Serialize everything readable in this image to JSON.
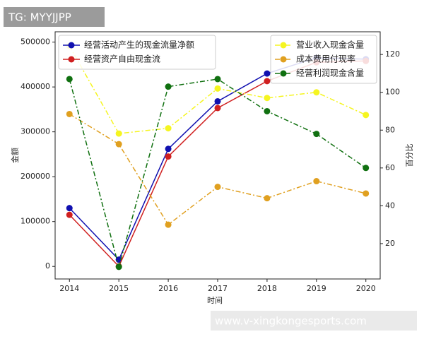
{
  "chart_data": {
    "type": "line",
    "x_label": "时间",
    "y_label": "金额",
    "y2_label": "百分比",
    "x": [
      2014,
      2015,
      2016,
      2017,
      2018,
      2019,
      2020
    ],
    "xlim": [
      2013.71,
      2020.29
    ],
    "xticks": [
      2014,
      2015,
      2016,
      2017,
      2018,
      2019,
      2020
    ],
    "ylim": [
      -28000,
      523000
    ],
    "yticks": [
      0,
      100000,
      200000,
      300000,
      400000,
      500000
    ],
    "y2lim": [
      1.3,
      132
    ],
    "y2ticks": [
      20,
      40,
      60,
      80,
      100,
      120
    ],
    "legend": "upper left",
    "legend2": "upper right",
    "series": [
      {
        "name": "经营活动产生的现金流量净额",
        "color": "#1010b0",
        "dash": "solid",
        "values": [
          130000,
          15000,
          262000,
          368000,
          430000,
          465000,
          462000
        ]
      },
      {
        "name": "经营资产自由现金流",
        "color": "#d02020",
        "dash": "solid",
        "values": [
          115000,
          0,
          245000,
          353000,
          413000,
          455000,
          458000
        ]
      },
      {
        "name": "营业收入现金含量",
        "color": "#f5f520",
        "dash": "dashdot",
        "axis": "y2",
        "values": [
          124.5,
          78.2,
          81,
          102,
          97,
          100,
          88
        ]
      },
      {
        "name": "成本费用付现率",
        "color": "#e0a020",
        "dash": "dashdot",
        "axis": "y2",
        "values": [
          88.5,
          72.6,
          30,
          50,
          44,
          53,
          46.5
        ]
      },
      {
        "name": "经营利润现金含量",
        "color": "#107010",
        "dash": "dashdot",
        "axis": "y2",
        "values": [
          107,
          7.7,
          103,
          107,
          90,
          78,
          60
        ]
      }
    ]
  },
  "watermarks": {
    "top": "TG: MYYJJPP",
    "bottom": "www.v-xingkongesports.com"
  }
}
